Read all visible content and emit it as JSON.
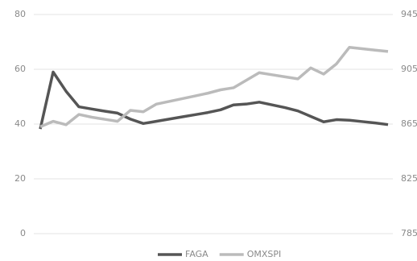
{
  "chart_data": {
    "type": "line",
    "categories": [
      null,
      null,
      null,
      null,
      null,
      null,
      null,
      null,
      null,
      null,
      null,
      null,
      null,
      null,
      null,
      null,
      null,
      null,
      null,
      null,
      null,
      null,
      null,
      null,
      null,
      null,
      null,
      null
    ],
    "series": [
      {
        "name": "FAGA",
        "color": "#555555",
        "axis": "y",
        "values": [
          38.2,
          59,
          52,
          46.3,
          45.5,
          44.7,
          44,
          41.8,
          40.2,
          41,
          41.8,
          42.6,
          43.4,
          44.2,
          45.2,
          47,
          47.3,
          48,
          47,
          46,
          44.8,
          42.8,
          40.8,
          41.6,
          41.4,
          40.9,
          40.4,
          39.8
        ]
      },
      {
        "name": "OMXSPI",
        "color": "#bbbbbb",
        "axis": "y2",
        "values": [
          863,
          867,
          864.5,
          872,
          870,
          868.5,
          867,
          875,
          874,
          879.5,
          881.5,
          883.5,
          885.5,
          887.5,
          890,
          891.5,
          897,
          902.5,
          901,
          899.5,
          898,
          906,
          901.5,
          909,
          921,
          920,
          919,
          918
        ]
      }
    ],
    "ylim": [
      0,
      80
    ],
    "yticks": [
      0,
      20,
      40,
      60,
      80
    ],
    "y2lim": [
      785,
      945
    ],
    "y2ticks": [
      785,
      825,
      865,
      905,
      945
    ],
    "grid": true,
    "legend": "bottom"
  }
}
